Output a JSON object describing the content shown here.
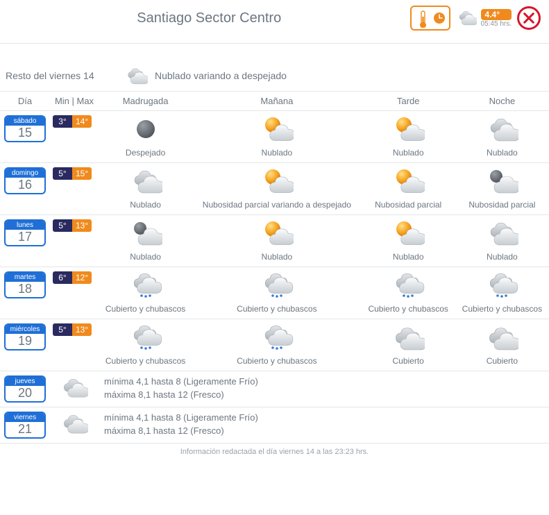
{
  "header": {
    "title": "Santiago Sector Centro",
    "now_temp": "4.4°",
    "now_time": "05:45 hrs."
  },
  "today": {
    "label": "Resto del viernes 14",
    "condition": "Nublado variando a despejado",
    "icon": "cloudy"
  },
  "columns": {
    "day": "Día",
    "minmax": "Min | Max",
    "p0": "Madrugada",
    "p1": "Mañana",
    "p2": "Tarde",
    "p3": "Noche"
  },
  "days": [
    {
      "dow": "sábado",
      "num": "15",
      "min": "3°",
      "max": "14°",
      "periods": [
        {
          "icon": "moon",
          "label": "Despejado"
        },
        {
          "icon": "partly",
          "label": "Nublado"
        },
        {
          "icon": "partly",
          "label": "Nublado"
        },
        {
          "icon": "cloudy",
          "label": "Nublado"
        }
      ]
    },
    {
      "dow": "domingo",
      "num": "16",
      "min": "5°",
      "max": "15°",
      "periods": [
        {
          "icon": "cloudy",
          "label": "Nublado"
        },
        {
          "icon": "partly",
          "label": "Nubosidad parcial variando a despejado"
        },
        {
          "icon": "partly",
          "label": "Nubosidad parcial"
        },
        {
          "icon": "moon-cloud",
          "label": "Nubosidad parcial"
        }
      ]
    },
    {
      "dow": "lunes",
      "num": "17",
      "min": "5°",
      "max": "13°",
      "periods": [
        {
          "icon": "moon-cloud",
          "label": "Nublado"
        },
        {
          "icon": "partly",
          "label": "Nublado"
        },
        {
          "icon": "partly",
          "label": "Nublado"
        },
        {
          "icon": "cloudy",
          "label": "Nublado"
        }
      ]
    },
    {
      "dow": "martes",
      "num": "18",
      "min": "6°",
      "max": "12°",
      "periods": [
        {
          "icon": "shower",
          "label": "Cubierto y chubascos"
        },
        {
          "icon": "shower",
          "label": "Cubierto y chubascos"
        },
        {
          "icon": "shower",
          "label": "Cubierto y chubascos"
        },
        {
          "icon": "shower",
          "label": "Cubierto y chubascos"
        }
      ]
    },
    {
      "dow": "miércoles",
      "num": "19",
      "min": "5°",
      "max": "13°",
      "periods": [
        {
          "icon": "shower",
          "label": "Cubierto y chubascos"
        },
        {
          "icon": "shower",
          "label": "Cubierto y chubascos"
        },
        {
          "icon": "overcast",
          "label": "Cubierto"
        },
        {
          "icon": "overcast",
          "label": "Cubierto"
        }
      ]
    }
  ],
  "text_days": [
    {
      "dow": "jueves",
      "num": "20",
      "icon": "overcast",
      "line1": "mínima 4,1 hasta 8 (Ligeramente Frío)",
      "line2": "máxima 8,1 hasta 12 (Fresco)"
    },
    {
      "dow": "viernes",
      "num": "21",
      "icon": "overcast",
      "line1": "mínima 4,1 hasta 8 (Ligeramente Frío)",
      "line2": "máxima 8,1 hasta 12 (Fresco)"
    }
  ],
  "footer": "Información redactada el día viernes 14 a las 23:23 hrs.",
  "colors": {
    "accent_orange": "#f08a1d",
    "accent_blue": "#1f6fd6",
    "min_bg": "#2a2a60",
    "close_red": "#d4182a",
    "text": "#6b7680",
    "border": "#e4e6e8"
  }
}
